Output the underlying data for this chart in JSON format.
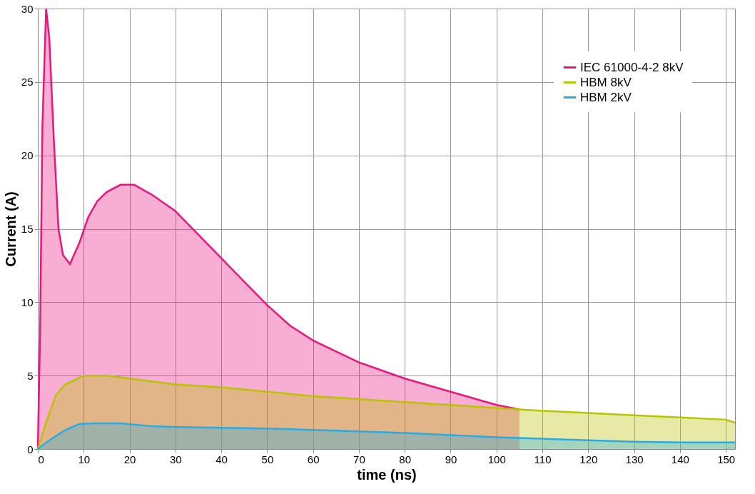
{
  "chart_data": {
    "type": "area",
    "xlabel": "time (ns)",
    "ylabel": "Current (A)",
    "xlim": [
      0,
      152
    ],
    "xticks": [
      0,
      10,
      20,
      30,
      40,
      50,
      60,
      70,
      80,
      90,
      100,
      110,
      120,
      130,
      140,
      150
    ],
    "ylim": [
      0,
      30
    ],
    "yticks": [
      0,
      5,
      10,
      15,
      20,
      25,
      30
    ],
    "grid": true,
    "legend": "top right",
    "series": [
      {
        "name": "IEC 61000-4-2 8kV",
        "color": "#e8177d",
        "x": [
          0,
          0.5,
          1,
          1.8,
          2.5,
          3.5,
          4.5,
          5.5,
          7,
          9,
          11,
          13,
          15,
          18,
          21,
          25,
          30,
          35,
          40,
          45,
          50,
          55,
          60,
          70,
          80,
          90,
          100,
          105
        ],
        "values": [
          0,
          8,
          22,
          30,
          28,
          21,
          15,
          13.2,
          12.6,
          14,
          15.8,
          16.9,
          17.5,
          18,
          18,
          17.3,
          16.2,
          14.6,
          13,
          11.4,
          9.8,
          8.4,
          7.4,
          5.9,
          4.8,
          3.9,
          3.0,
          2.7
        ]
      },
      {
        "name": "HBM 8kV",
        "color": "#b8c400",
        "x": [
          0,
          2,
          4,
          6,
          8,
          10,
          15,
          20,
          30,
          40,
          50,
          60,
          70,
          80,
          90,
          100,
          105,
          110,
          120,
          130,
          140,
          150,
          152
        ],
        "values": [
          0,
          2,
          3.7,
          4.4,
          4.7,
          5,
          5,
          4.8,
          4.4,
          4.2,
          3.9,
          3.6,
          3.4,
          3.2,
          3.0,
          2.8,
          2.7,
          2.6,
          2.45,
          2.3,
          2.15,
          2.0,
          1.8
        ]
      },
      {
        "name": "HBM 2kV",
        "color": "#29abe2",
        "x": [
          0,
          3,
          6,
          9,
          12,
          18,
          25,
          30,
          40,
          50,
          60,
          70,
          80,
          90,
          100,
          110,
          120,
          130,
          140,
          150,
          152
        ],
        "values": [
          0,
          0.7,
          1.3,
          1.7,
          1.75,
          1.75,
          1.55,
          1.5,
          1.45,
          1.4,
          1.3,
          1.2,
          1.1,
          0.95,
          0.8,
          0.7,
          0.6,
          0.5,
          0.45,
          0.45,
          0.45
        ]
      }
    ]
  }
}
